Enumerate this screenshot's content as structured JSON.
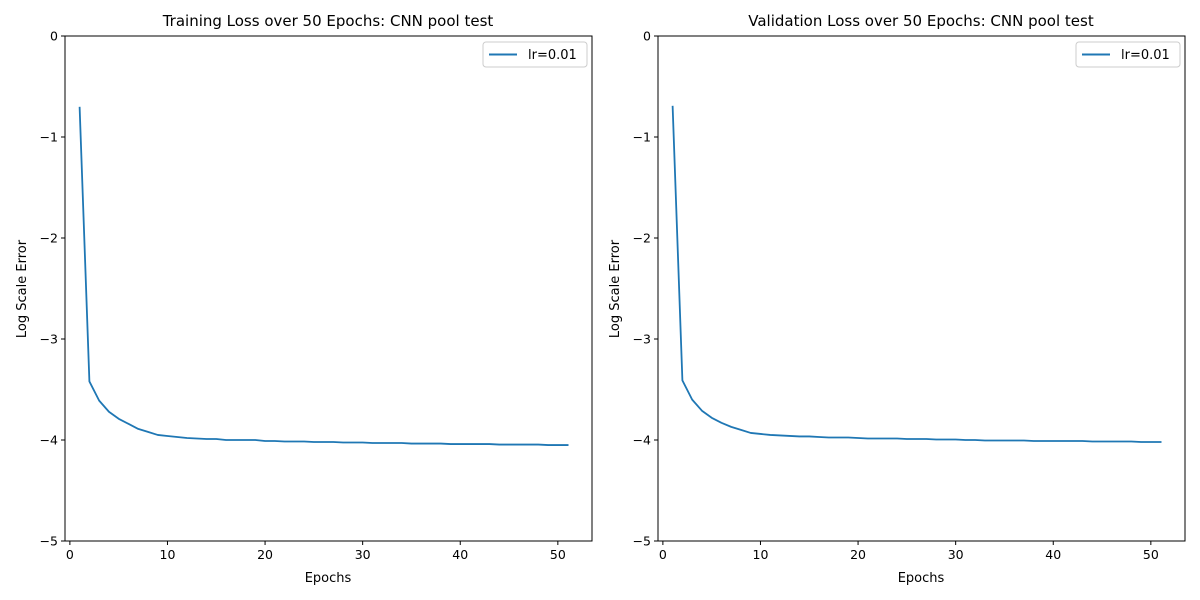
{
  "chart_data": [
    {
      "type": "line",
      "title": "Training Loss over 50 Epochs: CNN pool test",
      "xlabel": "Epochs",
      "ylabel": "Log Scale Error",
      "xlim": [
        -0.5,
        53.5
      ],
      "ylim": [
        -5,
        0
      ],
      "xticks": [
        0,
        10,
        20,
        30,
        40,
        50
      ],
      "yticks": [
        0,
        -1,
        -2,
        -3,
        -4,
        -5
      ],
      "xtick_labels": [
        "0",
        "10",
        "20",
        "30",
        "40",
        "50"
      ],
      "ytick_labels": [
        "0",
        "−1",
        "−2",
        "−3",
        "−4",
        "−5"
      ],
      "legend_position": "top-right",
      "grid": false,
      "series": [
        {
          "name": "lr=0.01",
          "color": "#1f77b4",
          "x": [
            1,
            2,
            3,
            4,
            5,
            6,
            7,
            8,
            9,
            10,
            11,
            12,
            13,
            14,
            15,
            16,
            17,
            18,
            19,
            20,
            21,
            22,
            23,
            24,
            25,
            26,
            27,
            28,
            29,
            30,
            31,
            32,
            33,
            34,
            35,
            36,
            37,
            38,
            39,
            40,
            41,
            42,
            43,
            44,
            45,
            46,
            47,
            48,
            49,
            50,
            51
          ],
          "y": [
            -0.71,
            -3.42,
            -3.61,
            -3.72,
            -3.79,
            -3.84,
            -3.89,
            -3.92,
            -3.95,
            -3.96,
            -3.97,
            -3.98,
            -3.985,
            -3.99,
            -3.99,
            -4.0,
            -4.0,
            -4.0,
            -4.0,
            -4.01,
            -4.01,
            -4.015,
            -4.015,
            -4.015,
            -4.02,
            -4.02,
            -4.02,
            -4.025,
            -4.025,
            -4.025,
            -4.03,
            -4.03,
            -4.03,
            -4.03,
            -4.035,
            -4.035,
            -4.035,
            -4.035,
            -4.04,
            -4.04,
            -4.04,
            -4.04,
            -4.04,
            -4.045,
            -4.045,
            -4.045,
            -4.045,
            -4.045,
            -4.05,
            -4.05,
            -4.05
          ]
        }
      ]
    },
    {
      "type": "line",
      "title": "Validation Loss over 50 Epochs: CNN pool test",
      "xlabel": "Epochs",
      "ylabel": "Log Scale Error",
      "xlim": [
        -0.5,
        53.5
      ],
      "ylim": [
        -5,
        0
      ],
      "xticks": [
        0,
        10,
        20,
        30,
        40,
        50
      ],
      "yticks": [
        0,
        -1,
        -2,
        -3,
        -4,
        -5
      ],
      "xtick_labels": [
        "0",
        "10",
        "20",
        "30",
        "40",
        "50"
      ],
      "ytick_labels": [
        "0",
        "−1",
        "−2",
        "−3",
        "−4",
        "−5"
      ],
      "legend_position": "top-right",
      "grid": false,
      "series": [
        {
          "name": "lr=0.01",
          "color": "#1f77b4",
          "x": [
            1,
            2,
            3,
            4,
            5,
            6,
            7,
            8,
            9,
            10,
            11,
            12,
            13,
            14,
            15,
            16,
            17,
            18,
            19,
            20,
            21,
            22,
            23,
            24,
            25,
            26,
            27,
            28,
            29,
            30,
            31,
            32,
            33,
            34,
            35,
            36,
            37,
            38,
            39,
            40,
            41,
            42,
            43,
            44,
            45,
            46,
            47,
            48,
            49,
            50,
            51
          ],
          "y": [
            -0.7,
            -3.41,
            -3.6,
            -3.71,
            -3.78,
            -3.83,
            -3.87,
            -3.9,
            -3.93,
            -3.94,
            -3.95,
            -3.955,
            -3.96,
            -3.965,
            -3.965,
            -3.97,
            -3.975,
            -3.975,
            -3.975,
            -3.98,
            -3.985,
            -3.985,
            -3.985,
            -3.985,
            -3.99,
            -3.99,
            -3.99,
            -3.995,
            -3.995,
            -3.995,
            -4.0,
            -4.0,
            -4.005,
            -4.005,
            -4.005,
            -4.005,
            -4.005,
            -4.01,
            -4.01,
            -4.01,
            -4.01,
            -4.01,
            -4.01,
            -4.015,
            -4.015,
            -4.015,
            -4.015,
            -4.015,
            -4.02,
            -4.02,
            -4.02
          ]
        }
      ]
    }
  ]
}
